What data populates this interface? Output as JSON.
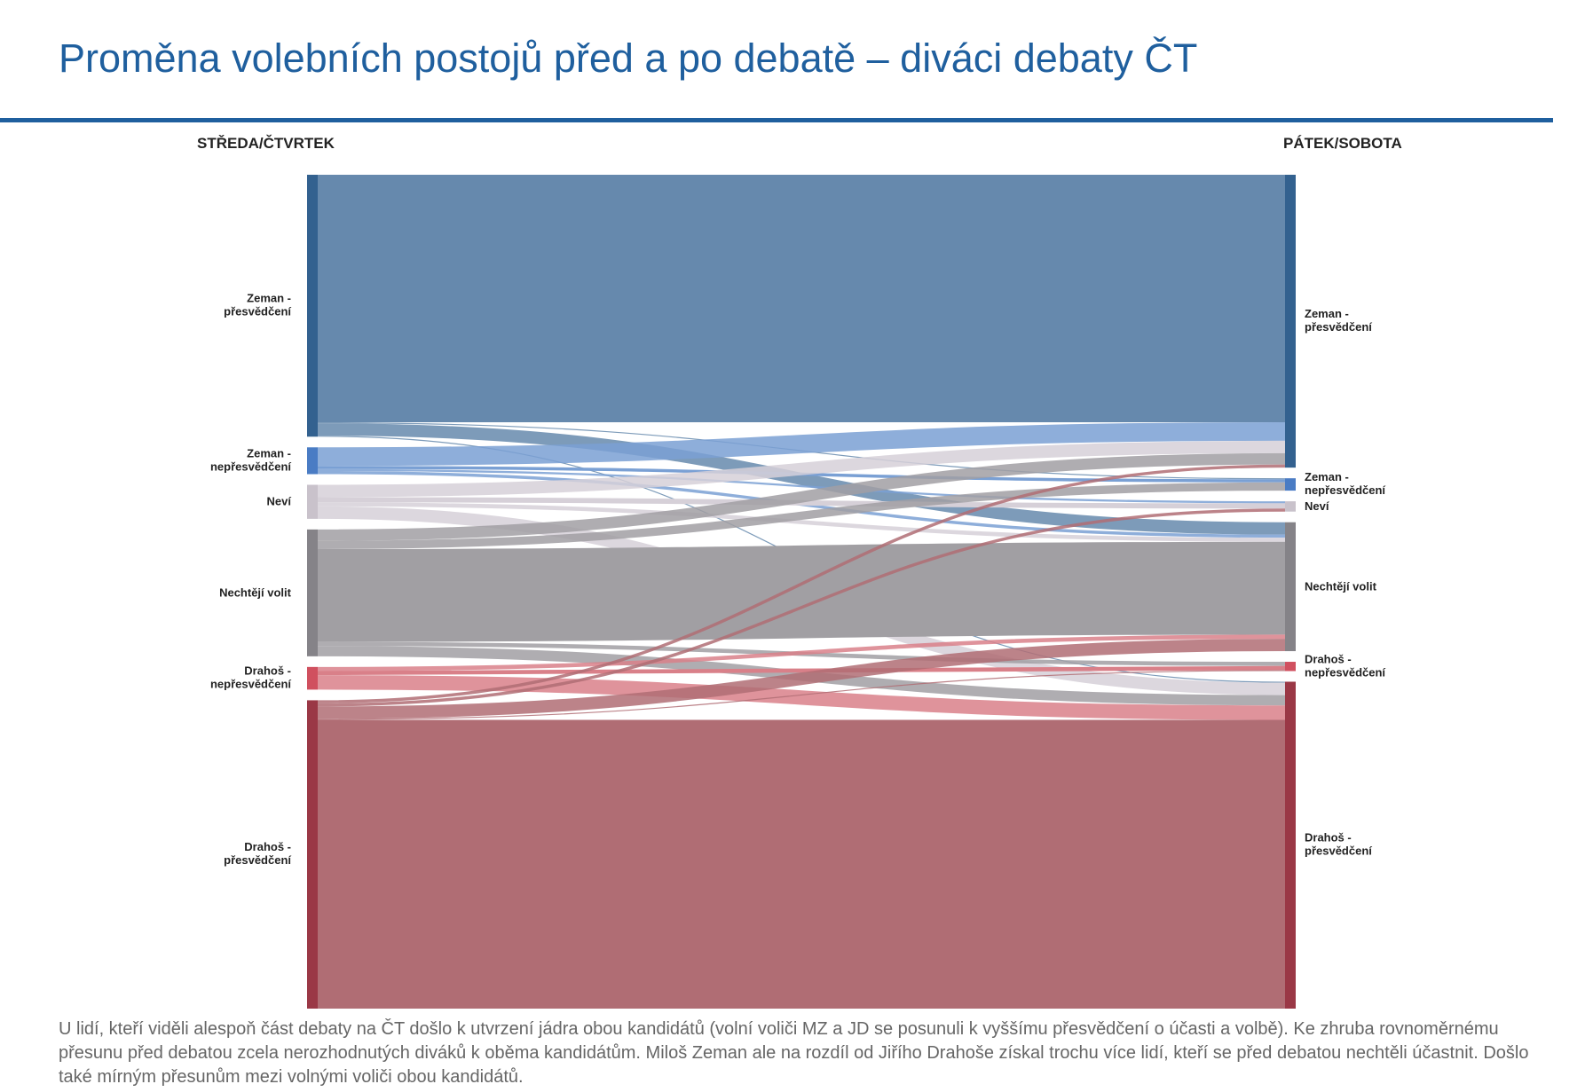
{
  "header": {
    "title": "Proměna volebních postojů před a po debatě – diváci debaty ČT"
  },
  "caption": "U lidí, kteří viděli alespoň část debaty na ČT došlo  k utvrzení jádra obou kandidátů (volní voliči MZ a JD se posunuli k vyššímu přesvědčení o účasti a volbě). Ke zhruba rovnoměrnému přesunu před debatou  zcela  nerozhodnutých diváků k oběma kandidátům. Miloš Zeman ale na rozdíl od Jiřího Drahoše získal trochu více lidí, kteří se před debatou nechtěli účastnit. Došlo také mírným přesunům mezi volnými voliči obou kandidátů.",
  "colors": {
    "title": "#1f5f9e",
    "zeman_strong": "#33618f",
    "zeman_weak": "#4a7cc4",
    "nevi": "#c9c2cb",
    "nechteji": "#858388",
    "drahos_weak": "#d0505f",
    "drahos_strong": "#9a3846"
  },
  "chart_data": {
    "type": "sankey",
    "left_header": "STŘEDA/ČTVRTEK",
    "right_header": "PÁTEK/SOBOTA",
    "nodes": [
      {
        "id": "zs",
        "label_lines": [
          "Zeman -",
          "přesvědčení"
        ],
        "color": "#33618f",
        "link_color": "#6689ad"
      },
      {
        "id": "zw",
        "label_lines": [
          "Zeman -",
          "nepřesvědčení"
        ],
        "color": "#4a7cc4",
        "link_color": "#7aa0d4"
      },
      {
        "id": "nv",
        "label_lines": [
          "Neví"
        ],
        "color": "#c9c2cb",
        "link_color": "#d6d0d8"
      },
      {
        "id": "nc",
        "label_lines": [
          "Nechtějí volit"
        ],
        "color": "#858388",
        "link_color": "#a19fa3"
      },
      {
        "id": "dw",
        "label_lines": [
          "Drahoš -",
          "nepřesvědčení"
        ],
        "color": "#d0505f",
        "link_color": "#d98089"
      },
      {
        "id": "ds",
        "label_lines": [
          "Drahoš -",
          "přesvědčení"
        ],
        "color": "#9a3846",
        "link_color": "#b06d74"
      }
    ],
    "flows": [
      {
        "from": "zs",
        "to": "zs",
        "value": 240
      },
      {
        "from": "zs",
        "to": "zw",
        "value": 1
      },
      {
        "from": "zs",
        "to": "nc",
        "value": 12
      },
      {
        "from": "zs",
        "to": "ds",
        "value": 1
      },
      {
        "from": "zw",
        "to": "zs",
        "value": 18
      },
      {
        "from": "zw",
        "to": "zw",
        "value": 3
      },
      {
        "from": "zw",
        "to": "nv",
        "value": 2
      },
      {
        "from": "zw",
        "to": "nc",
        "value": 3
      },
      {
        "from": "nv",
        "to": "zs",
        "value": 12
      },
      {
        "from": "nv",
        "to": "nv",
        "value": 5
      },
      {
        "from": "nv",
        "to": "nc",
        "value": 4
      },
      {
        "from": "nv",
        "to": "ds",
        "value": 12
      },
      {
        "from": "nc",
        "to": "zs",
        "value": 11
      },
      {
        "from": "nc",
        "to": "zw",
        "value": 8
      },
      {
        "from": "nc",
        "to": "nc",
        "value": 90
      },
      {
        "from": "nc",
        "to": "dw",
        "value": 4
      },
      {
        "from": "nc",
        "to": "ds",
        "value": 10
      },
      {
        "from": "dw",
        "to": "nc",
        "value": 4
      },
      {
        "from": "dw",
        "to": "dw",
        "value": 4
      },
      {
        "from": "dw",
        "to": "ds",
        "value": 14
      },
      {
        "from": "ds",
        "to": "zs",
        "value": 3
      },
      {
        "from": "ds",
        "to": "nv",
        "value": 3
      },
      {
        "from": "ds",
        "to": "nc",
        "value": 12
      },
      {
        "from": "ds",
        "to": "dw",
        "value": 1
      },
      {
        "from": "ds",
        "to": "ds",
        "value": 280
      }
    ]
  }
}
